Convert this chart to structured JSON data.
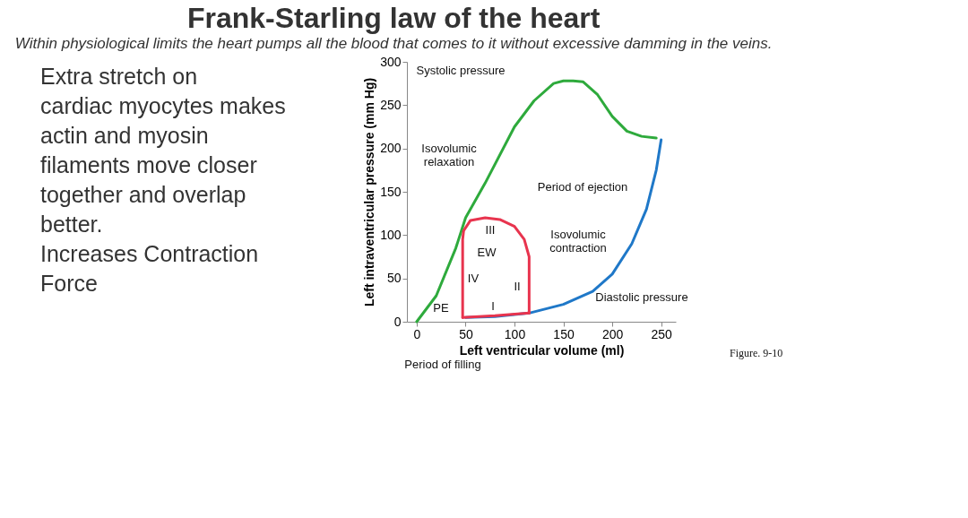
{
  "chart_data": {
    "type": "line",
    "title": "Frank-Starling law of the heart",
    "subtitle": "Within physiological limits the heart pumps all the blood that comes to it without excessive damming in the veins.",
    "xlabel": "Left ventricular volume (ml)",
    "ylabel": "Left intraventricular pressure (mm Hg)",
    "xlim": [
      -10,
      265
    ],
    "ylim": [
      0,
      300
    ],
    "xticks": [
      0,
      50,
      100,
      150,
      200,
      250
    ],
    "yticks": [
      0,
      50,
      100,
      150,
      200,
      250,
      300
    ],
    "grid": false,
    "marker": "none",
    "line_style": "solid",
    "series": [
      {
        "color": "#2eaa3c",
        "x": [
          0,
          20,
          40,
          50,
          70,
          100,
          120,
          140,
          150,
          160,
          170,
          185,
          200,
          215,
          230,
          245
        ],
        "values": [
          0,
          30,
          85,
          120,
          160,
          225,
          255,
          275,
          278,
          278,
          277,
          262,
          237,
          220,
          214,
          212
        ]
      },
      {
        "color": "#1f78c8",
        "x": [
          50,
          80,
          115,
          150,
          180,
          200,
          220,
          235,
          245,
          250
        ],
        "values": [
          5,
          6,
          10,
          20,
          35,
          55,
          90,
          130,
          175,
          210
        ]
      },
      {
        "color": "#e8344e",
        "x": [
          47,
          47,
          48,
          55,
          70,
          85,
          100,
          110,
          115,
          115
        ],
        "values": [
          5,
          95,
          105,
          117,
          120,
          118,
          110,
          95,
          75,
          10
        ]
      },
      {
        "color": "#e8344e",
        "x": [
          47,
          80,
          115
        ],
        "values": [
          5,
          7,
          10
        ]
      }
    ],
    "annotations": [
      "Extra stretch on cardiac myocytes makes actin and myosin filaments move closer together and overlap better.",
      "Increases Contraction Force",
      "Period of filling",
      "Figure. 9-10",
      "Systolic pressure",
      "Isovolumic relaxation",
      "Period of ejection",
      "Isovolumic contraction",
      "Diastolic pressure",
      "III",
      "EW",
      "IV",
      "II",
      "I",
      "PE"
    ]
  }
}
